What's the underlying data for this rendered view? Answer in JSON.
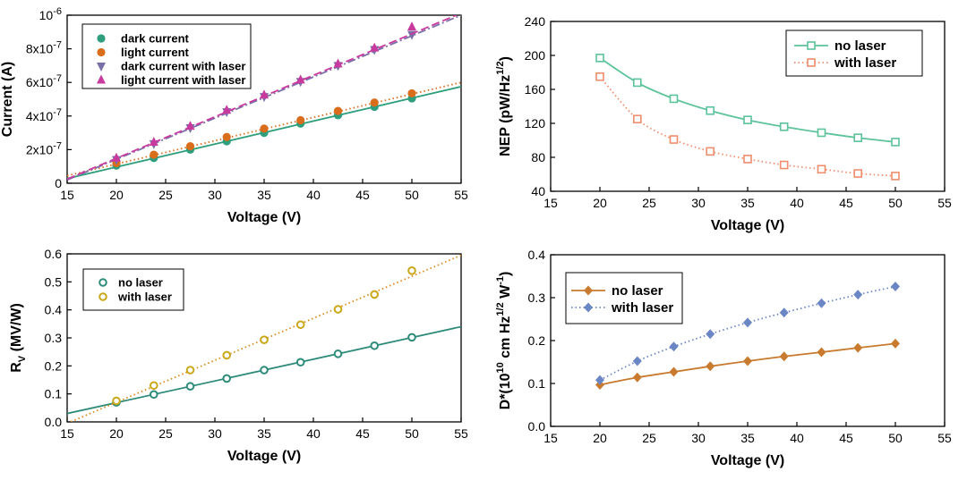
{
  "chart_data": [
    {
      "type": "line",
      "panel": "current-vs-voltage",
      "xlabel": "Voltage (V)",
      "ylabel": "Current (A)",
      "xlim": [
        15,
        55
      ],
      "ylim": [
        0,
        1e-06
      ],
      "xticks": [
        "15",
        "20",
        "25",
        "30",
        "35",
        "40",
        "45",
        "50",
        "55"
      ],
      "yticks": [
        "0",
        "2x10-7",
        "4x10-7",
        "6x10-7",
        "8x10-7",
        "10-6"
      ],
      "yticks_parts": [
        {
          "base": "0",
          "exp": ""
        },
        {
          "base": "2x10",
          "exp": "-7"
        },
        {
          "base": "4x10",
          "exp": "-7"
        },
        {
          "base": "6x10",
          "exp": "-7"
        },
        {
          "base": "8x10",
          "exp": "-7"
        },
        {
          "base": "10",
          "exp": "-6"
        }
      ],
      "legend_position": "top-left",
      "series": [
        {
          "name": "dark current",
          "marker": "circle",
          "color": "#2e9e7c",
          "x": [
            20,
            23.8,
            27.5,
            31.2,
            35,
            38.7,
            42.5,
            46.2,
            50
          ],
          "values": [
            1.05e-07,
            1.5e-07,
            2e-07,
            2.5e-07,
            3e-07,
            3.55e-07,
            4.05e-07,
            4.55e-07,
            5.05e-07
          ],
          "fit": {
            "x": [
              15,
              55
            ],
            "y": [
              2.8e-08,
              5.75e-07
            ],
            "dash": "solid"
          }
        },
        {
          "name": "light current",
          "marker": "circle",
          "color": "#d96d1c",
          "x": [
            20,
            23.8,
            27.5,
            31.2,
            35,
            38.7,
            42.5,
            46.2,
            50
          ],
          "values": [
            1.2e-07,
            1.7e-07,
            2.2e-07,
            2.75e-07,
            3.25e-07,
            3.75e-07,
            4.3e-07,
            4.8e-07,
            5.35e-07
          ],
          "fit": {
            "x": [
              15,
              55
            ],
            "y": [
              4.5e-08,
              6e-07
            ],
            "dash": "dotted"
          }
        },
        {
          "name": "dark current with laser",
          "marker": "triangle-down",
          "color": "#7b6fa8",
          "x": [
            20,
            23.8,
            27.5,
            31.2,
            35,
            38.7,
            42.5,
            46.2,
            50
          ],
          "values": [
            1.4e-07,
            2.35e-07,
            3.3e-07,
            4.25e-07,
            5.15e-07,
            6.05e-07,
            7e-07,
            7.95e-07,
            8.85e-07
          ],
          "fit": {
            "x": [
              15,
              55
            ],
            "y": [
              2e-08,
              1e-06
            ],
            "dash": "dashdot"
          }
        },
        {
          "name": "light current with laser",
          "marker": "triangle-up",
          "color": "#c93a9e",
          "x": [
            20,
            23.8,
            27.5,
            31.2,
            35,
            38.7,
            42.5,
            46.2,
            50
          ],
          "values": [
            1.5e-07,
            2.45e-07,
            3.4e-07,
            4.35e-07,
            5.25e-07,
            6.15e-07,
            7.1e-07,
            8.05e-07,
            9.3e-07
          ],
          "fit": {
            "x": [
              15,
              54.5
            ],
            "y": [
              2.5e-08,
              1e-06
            ],
            "dash": "dashed"
          }
        }
      ]
    },
    {
      "type": "line",
      "panel": "nep-vs-voltage",
      "xlabel": "Voltage (V)",
      "ylabel": "NEP (pW/Hz1/2)",
      "ylabel_parts": {
        "pre": "NEP (pW/Hz",
        "sup": "1/2",
        "post": ")"
      },
      "xlim": [
        15,
        55
      ],
      "ylim": [
        40,
        240
      ],
      "xticks": [
        "15",
        "20",
        "25",
        "30",
        "35",
        "40",
        "45",
        "50",
        "55"
      ],
      "yticks": [
        "40",
        "80",
        "120",
        "160",
        "200",
        "240"
      ],
      "legend_position": "top-right",
      "series": [
        {
          "name": "no laser",
          "marker": "square",
          "color": "#5cc39a",
          "dash": "solid",
          "x": [
            20,
            23.8,
            27.5,
            31.2,
            35,
            38.7,
            42.5,
            46.2,
            50
          ],
          "values": [
            197,
            168,
            149,
            135,
            124,
            116,
            109,
            103,
            98
          ]
        },
        {
          "name": "with laser",
          "marker": "square",
          "color": "#ef8d6c",
          "dash": "dotted",
          "x": [
            20,
            23.8,
            27.5,
            31.2,
            35,
            38.7,
            42.5,
            46.2,
            50
          ],
          "values": [
            175,
            125,
            101,
            87,
            78,
            71,
            66,
            61,
            58
          ]
        }
      ]
    },
    {
      "type": "line",
      "panel": "responsivity-vs-voltage",
      "xlabel": "Voltage (V)",
      "ylabel": "RV (MV/W)",
      "ylabel_parts": {
        "pre": "R",
        "sub": "V",
        "post": " (MV/W)"
      },
      "xlim": [
        15,
        55
      ],
      "ylim": [
        0,
        0.6
      ],
      "xticks": [
        "15",
        "20",
        "25",
        "30",
        "35",
        "40",
        "45",
        "50",
        "55"
      ],
      "yticks": [
        "0.0",
        "0.1",
        "0.2",
        "0.3",
        "0.4",
        "0.5",
        "0.6"
      ],
      "legend_position": "top-left",
      "series": [
        {
          "name": "no laser",
          "marker": "open-circle",
          "color": "#2e8b7a",
          "x": [
            20,
            23.8,
            27.5,
            31.2,
            35,
            38.7,
            42.5,
            46.2,
            50
          ],
          "values": [
            0.07,
            0.098,
            0.127,
            0.155,
            0.185,
            0.213,
            0.243,
            0.272,
            0.302
          ],
          "fit": {
            "x": [
              15,
              55
            ],
            "y": [
              0.03,
              0.34
            ],
            "dash": "solid"
          }
        },
        {
          "name": "with laser",
          "marker": "open-circle",
          "color": "#c9a81a",
          "x": [
            20,
            23.8,
            27.5,
            31.2,
            35,
            38.7,
            42.5,
            46.2,
            50
          ],
          "values": [
            0.075,
            0.13,
            0.185,
            0.238,
            0.293,
            0.347,
            0.402,
            0.455,
            0.54
          ],
          "fit": {
            "x": [
              15,
              55
            ],
            "y": [
              -0.005,
              0.595
            ],
            "dash": "dotted",
            "color": "#d98a1a"
          }
        }
      ]
    },
    {
      "type": "line",
      "panel": "detectivity-vs-voltage",
      "xlabel": "Voltage (V)",
      "ylabel": "D*(1010 cm Hz1/2 W-1)",
      "ylabel_parts": {
        "a": "D*(10",
        "s1": "10",
        "b": " cm Hz",
        "s2": "1/2",
        "c": " W",
        "s3": "-1",
        "d": ")"
      },
      "xlim": [
        15,
        55
      ],
      "ylim": [
        0,
        0.4
      ],
      "xticks": [
        "15",
        "20",
        "25",
        "30",
        "35",
        "40",
        "45",
        "50",
        "55"
      ],
      "yticks": [
        "0.0",
        "0.1",
        "0.2",
        "0.3",
        "0.4"
      ],
      "legend_position": "top-left",
      "series": [
        {
          "name": "no laser",
          "marker": "diamond",
          "color": "#c87a2e",
          "dash": "solid",
          "x": [
            20,
            23.8,
            27.5,
            31.2,
            35,
            38.7,
            42.5,
            46.2,
            50
          ],
          "values": [
            0.097,
            0.114,
            0.127,
            0.14,
            0.152,
            0.163,
            0.173,
            0.183,
            0.193
          ]
        },
        {
          "name": "with laser",
          "marker": "diamond",
          "color": "#6b86c4",
          "dash": "dotted",
          "x": [
            20,
            23.8,
            27.5,
            31.2,
            35,
            38.7,
            42.5,
            46.2,
            50
          ],
          "values": [
            0.108,
            0.152,
            0.186,
            0.215,
            0.242,
            0.265,
            0.287,
            0.307,
            0.326
          ]
        }
      ]
    }
  ]
}
